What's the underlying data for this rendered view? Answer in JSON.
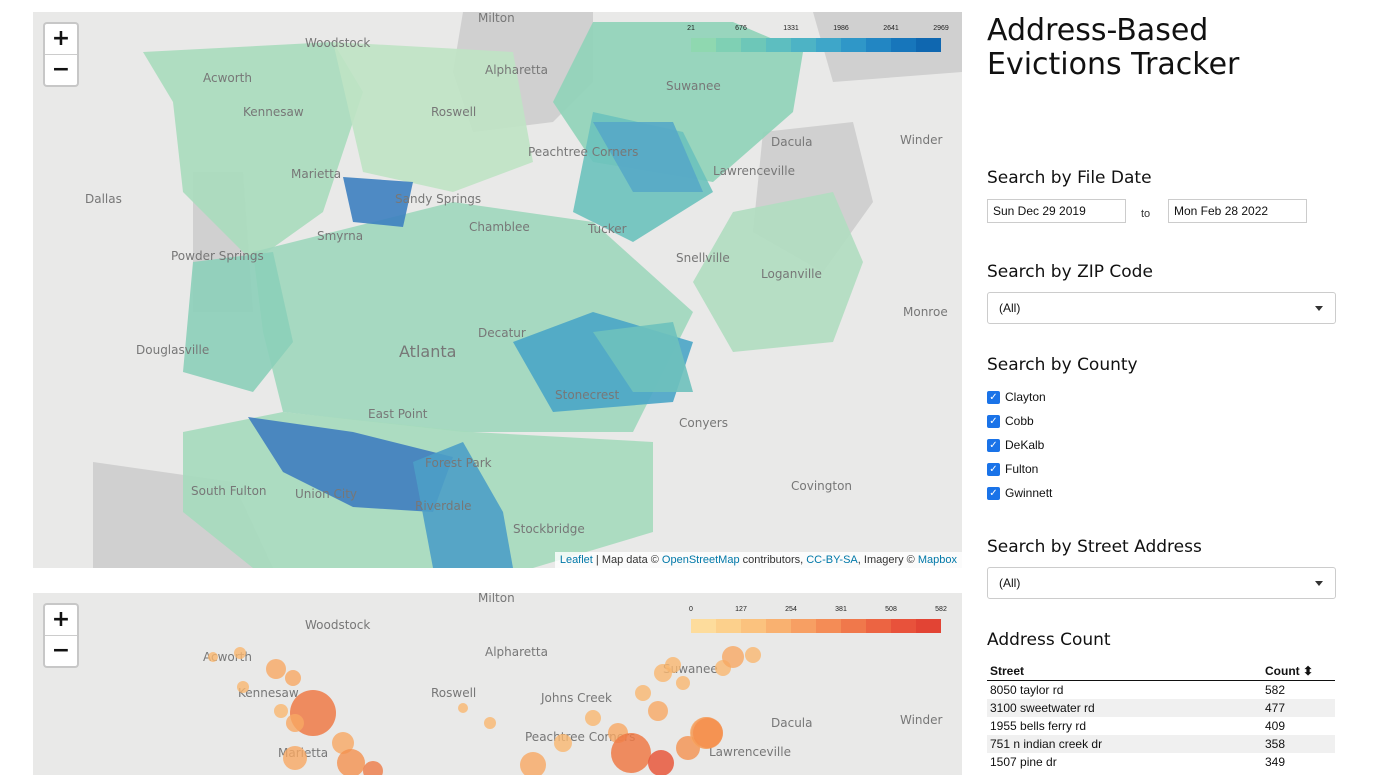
{
  "map1": {
    "zoom_in": "+",
    "zoom_out": "−",
    "legend_ticks": [
      "21",
      "676",
      "1331",
      "1986",
      "2641",
      "2969"
    ],
    "legend_colors": [
      "#8fd8b0",
      "#7fd0b4",
      "#6dc7b8",
      "#5dbec0",
      "#4db3c5",
      "#3ea6c9",
      "#2f97c8",
      "#2286c3",
      "#1776bb",
      "#0f67b0"
    ],
    "places": [
      "Milton",
      "Woodstock",
      "Acworth",
      "Alpharetta",
      "Kennesaw",
      "Roswell",
      "Suwanee",
      "Dacula",
      "Winder",
      "Marietta",
      "Peachtree Corners",
      "Lawrenceville",
      "Dallas",
      "Sandy Springs",
      "Smyrna",
      "Chamblee",
      "Tucker",
      "Snellville",
      "Powder Springs",
      "Loganville",
      "Monroe",
      "Douglasville",
      "Atlanta",
      "Decatur",
      "Stonecrest",
      "East Point",
      "Conyers",
      "Covington",
      "South Fulton",
      "Union City",
      "Forest Park",
      "Riverdale",
      "Stockbridge"
    ],
    "attribution": {
      "leaflet": "Leaflet",
      "sep1": " | Map data © ",
      "osm": "OpenStreetMap",
      "sep2": " contributors, ",
      "license": "CC-BY-SA",
      "sep3": ", Imagery © ",
      "mapbox": "Mapbox"
    }
  },
  "map2": {
    "zoom_in": "+",
    "zoom_out": "−",
    "legend_ticks": [
      "0",
      "127",
      "254",
      "381",
      "508",
      "582"
    ],
    "legend_colors": [
      "#fddc9c",
      "#fcd08c",
      "#fbc27e",
      "#f9b170",
      "#f79f63",
      "#f48c56",
      "#f0784b",
      "#ec6442",
      "#e8523b",
      "#e24434"
    ],
    "places": [
      "Milton",
      "Woodstock",
      "Acworth",
      "Alpharetta",
      "Kennesaw",
      "Roswell",
      "Johns Creek",
      "Suwanee",
      "Dacula",
      "Winder",
      "Marietta",
      "Peachtree Corners",
      "Lawrenceville"
    ]
  },
  "panel": {
    "title": "Address-Based Evictions Tracker",
    "file_date_heading": "Search by File Date",
    "date_from": "Sun Dec 29 2019",
    "date_to_label": "to",
    "date_to": "Mon Feb 28 2022",
    "zip_heading": "Search by ZIP Code",
    "zip_selected": "(All)",
    "county_heading": "Search by County",
    "counties": [
      "Clayton",
      "Cobb",
      "DeKalb",
      "Fulton",
      "Gwinnett"
    ],
    "street_heading": "Search by Street Address",
    "street_selected": "(All)",
    "count_heading": "Address Count",
    "table": {
      "col_street": "Street",
      "col_count": "Count",
      "sort_icon": "⬍",
      "rows": [
        {
          "street": "8050 taylor rd",
          "count": "582"
        },
        {
          "street": "3100 sweetwater rd",
          "count": "477"
        },
        {
          "street": "1955 bells ferry rd",
          "count": "409"
        },
        {
          "street": "751 n indian creek dr",
          "count": "358"
        },
        {
          "street": "1507 pine dr",
          "count": "349"
        }
      ]
    }
  }
}
